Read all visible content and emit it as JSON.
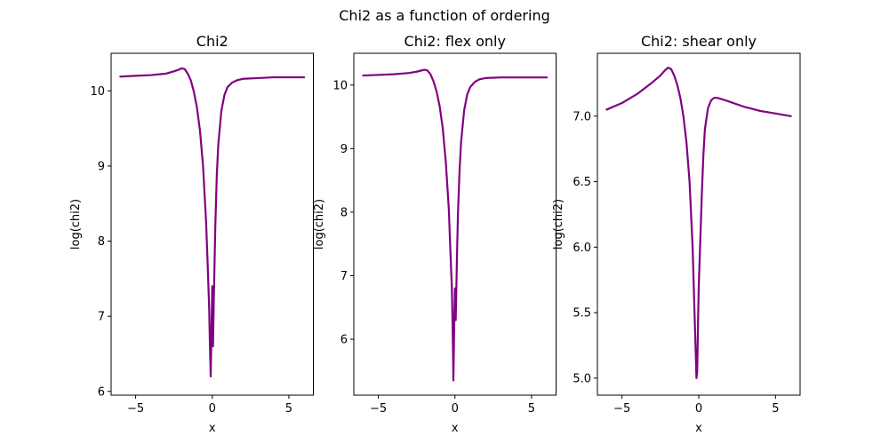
{
  "figure": {
    "suptitle": "Chi2 as a function of ordering"
  },
  "colors": {
    "line": "#800080",
    "frame": "#000000",
    "background": "#ffffff"
  },
  "chart_data": [
    {
      "type": "line",
      "title": "Chi2",
      "xlabel": "x",
      "ylabel": "log(chi2)",
      "xlim": [
        -6.6,
        6.6
      ],
      "ylim": [
        5.95,
        10.5
      ],
      "xticks": [
        -5,
        0,
        5
      ],
      "xtick_labels": [
        "−5",
        "0",
        "5"
      ],
      "yticks": [
        6,
        7,
        8,
        9,
        10
      ],
      "ytick_labels": [
        "6",
        "7",
        "8",
        "9",
        "10"
      ],
      "grid": false,
      "series": [
        {
          "x": [
            -6.0,
            -5.0,
            -4.0,
            -3.0,
            -2.5,
            -2.2,
            -2.0,
            -1.8,
            -1.6,
            -1.4,
            -1.2,
            -1.0,
            -0.8,
            -0.6,
            -0.4,
            -0.3,
            -0.2,
            -0.15,
            -0.1,
            -0.05,
            0.0,
            0.05,
            0.1,
            0.15,
            0.2,
            0.3,
            0.4,
            0.6,
            0.8,
            1.0,
            1.3,
            1.6,
            2.0,
            3.0,
            4.0,
            5.0,
            6.0
          ],
          "y": [
            10.19,
            10.2,
            10.21,
            10.23,
            10.26,
            10.28,
            10.3,
            10.29,
            10.23,
            10.14,
            9.99,
            9.78,
            9.47,
            9.0,
            8.25,
            7.7,
            7.1,
            6.6,
            6.2,
            6.8,
            7.4,
            6.6,
            7.2,
            7.7,
            8.2,
            8.9,
            9.3,
            9.74,
            9.95,
            10.05,
            10.11,
            10.14,
            10.16,
            10.17,
            10.18,
            10.18,
            10.18
          ]
        }
      ]
    },
    {
      "type": "line",
      "title": "Chi2: flex only",
      "xlabel": "x",
      "ylabel": "log(chi2)",
      "xlim": [
        -6.6,
        6.6
      ],
      "ylim": [
        5.12,
        10.5
      ],
      "xticks": [
        -5,
        0,
        5
      ],
      "xtick_labels": [
        "−5",
        "0",
        "5"
      ],
      "yticks": [
        6,
        7,
        8,
        9,
        10
      ],
      "ytick_labels": [
        "6",
        "7",
        "8",
        "9",
        "10"
      ],
      "grid": false,
      "series": [
        {
          "x": [
            -6.0,
            -5.0,
            -4.0,
            -3.0,
            -2.5,
            -2.0,
            -1.8,
            -1.6,
            -1.4,
            -1.2,
            -1.0,
            -0.8,
            -0.6,
            -0.4,
            -0.3,
            -0.2,
            -0.15,
            -0.1,
            -0.05,
            0.0,
            0.05,
            0.1,
            0.15,
            0.2,
            0.3,
            0.4,
            0.6,
            0.8,
            1.0,
            1.3,
            1.6,
            2.0,
            3.0,
            4.0,
            5.0,
            6.0
          ],
          "y": [
            10.15,
            10.16,
            10.17,
            10.19,
            10.21,
            10.24,
            10.23,
            10.17,
            10.06,
            9.9,
            9.67,
            9.33,
            8.8,
            8.05,
            7.4,
            6.8,
            6.2,
            5.35,
            6.2,
            6.8,
            6.3,
            6.9,
            7.5,
            8.0,
            8.65,
            9.1,
            9.6,
            9.85,
            9.97,
            10.05,
            10.09,
            10.11,
            10.12,
            10.12,
            10.12,
            10.12
          ]
        }
      ]
    },
    {
      "type": "line",
      "title": "Chi2: shear only",
      "xlabel": "x",
      "ylabel": "log(chi2)",
      "xlim": [
        -6.6,
        6.6
      ],
      "ylim": [
        4.87,
        7.48
      ],
      "xticks": [
        -5,
        0,
        5
      ],
      "xtick_labels": [
        "−5",
        "0",
        "5"
      ],
      "yticks": [
        5.0,
        5.5,
        6.0,
        6.5,
        7.0
      ],
      "ytick_labels": [
        "5.0",
        "5.5",
        "6.0",
        "6.5",
        "7.0"
      ],
      "grid": false,
      "series": [
        {
          "x": [
            -6.0,
            -5.0,
            -4.0,
            -3.0,
            -2.5,
            -2.2,
            -2.0,
            -1.8,
            -1.6,
            -1.4,
            -1.2,
            -1.0,
            -0.8,
            -0.6,
            -0.4,
            -0.3,
            -0.2,
            -0.15,
            -0.1,
            -0.05,
            0.0,
            0.1,
            0.2,
            0.3,
            0.4,
            0.6,
            0.8,
            1.0,
            1.2,
            1.5,
            2.0,
            3.0,
            4.0,
            5.0,
            6.0
          ],
          "y": [
            7.05,
            7.1,
            7.17,
            7.26,
            7.31,
            7.35,
            7.37,
            7.36,
            7.31,
            7.24,
            7.14,
            7.0,
            6.8,
            6.5,
            6.0,
            5.6,
            5.2,
            5.0,
            5.05,
            5.4,
            5.7,
            6.05,
            6.4,
            6.7,
            6.9,
            7.06,
            7.12,
            7.14,
            7.14,
            7.13,
            7.11,
            7.07,
            7.04,
            7.02,
            7.0
          ]
        }
      ]
    }
  ]
}
